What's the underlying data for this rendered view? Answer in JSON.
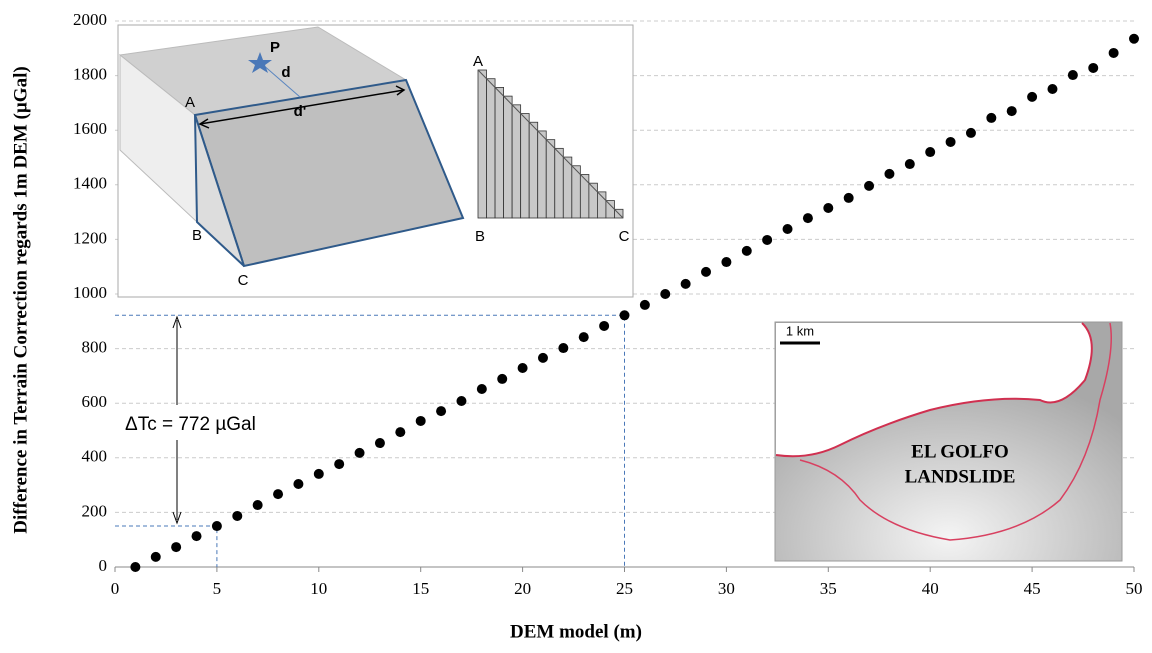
{
  "chart_data": {
    "type": "scatter",
    "xlabel": "DEM model (m)",
    "ylabel": "Difference in Terrain Correction regards 1m DEM (µGal)",
    "x": [
      1,
      2,
      3,
      4,
      5,
      6,
      7,
      8,
      9,
      10,
      11,
      12,
      13,
      14,
      15,
      16,
      17,
      18,
      19,
      20,
      21,
      22,
      23,
      24,
      25,
      26,
      27,
      28,
      29,
      30,
      31,
      32,
      33,
      34,
      35,
      36,
      37,
      38,
      39,
      40,
      41,
      42,
      43,
      44,
      45,
      46,
      47,
      48,
      49,
      50
    ],
    "y": [
      0,
      37,
      73,
      113,
      150,
      187,
      227,
      267,
      304,
      341,
      377,
      418,
      454,
      494,
      535,
      571,
      608,
      652,
      689,
      729,
      766,
      802,
      842,
      883,
      922,
      960,
      1000,
      1037,
      1081,
      1117,
      1158,
      1198,
      1238,
      1278,
      1315,
      1352,
      1396,
      1440,
      1476,
      1520,
      1557,
      1590,
      1645,
      1670,
      1722,
      1751,
      1802,
      1828,
      1883,
      1935
    ],
    "color": "#000000",
    "xlim": [
      0,
      50
    ],
    "ylim": [
      0,
      2000
    ],
    "xticks": [
      0,
      5,
      10,
      15,
      20,
      25,
      30,
      35,
      40,
      45,
      50
    ],
    "yticks": [
      0,
      200,
      400,
      600,
      800,
      1000,
      1200,
      1400,
      1600,
      1800,
      2000
    ],
    "grid": true,
    "reference_points": [
      {
        "x": 5,
        "y": 150
      },
      {
        "x": 25,
        "y": 922
      }
    ],
    "annotation": "ΔTc = 772 µGal",
    "inset_diagram": {
      "labels_3d": [
        "A",
        "B",
        "C",
        "P",
        "d",
        "d'"
      ],
      "labels_profile": [
        "A",
        "B",
        "C"
      ]
    },
    "inset_map": {
      "title_line1": "EL GOLFO",
      "title_line2": "LANDSLIDE",
      "scale": "1 km"
    }
  }
}
